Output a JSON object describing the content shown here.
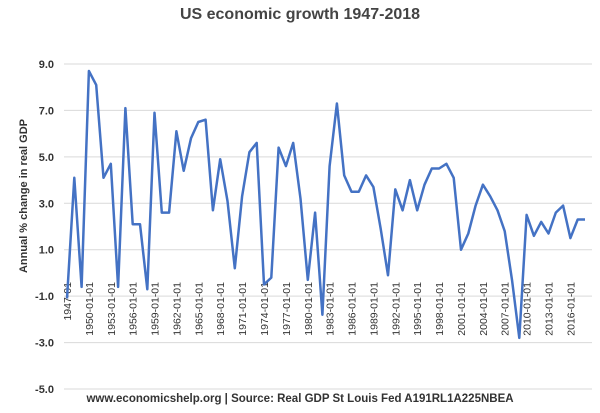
{
  "chart_data": {
    "type": "line",
    "title": "US economic growth 1947-2018",
    "ylabel": "Annual % change in real GDP",
    "xlabel": "",
    "source": "www.economicshelp.org | Source: Real GDP St Louis Fed A191RL1A225NBEA",
    "ylim": [
      -5,
      9
    ],
    "yticks": [
      "9.0",
      "7.0",
      "5.0",
      "3.0",
      "1.0",
      "-1.0",
      "-3.0",
      "-5.0"
    ],
    "xticks": [
      "1947-01",
      "1950-01-01",
      "1953-01-01",
      "1956-01-01",
      "1959-01-01",
      "1962-01-01",
      "1965-01-01",
      "1968-01-01",
      "1971-01-01",
      "1974-01-01",
      "1977-01-01",
      "1980-01-01",
      "1983-01-01",
      "1986-01-01",
      "1989-01-01",
      "1992-01-01",
      "1995-01-01",
      "1998-01-01",
      "2001-01-01",
      "2004-01-01",
      "2007-01-01",
      "2010-01-01",
      "2013-01-01",
      "2016-01-01"
    ],
    "line_color": "#4472C4",
    "grid": true,
    "x": [
      1947,
      1948,
      1949,
      1950,
      1951,
      1952,
      1953,
      1954,
      1955,
      1956,
      1957,
      1958,
      1959,
      1960,
      1961,
      1962,
      1963,
      1964,
      1965,
      1966,
      1967,
      1968,
      1969,
      1970,
      1971,
      1972,
      1973,
      1974,
      1975,
      1976,
      1977,
      1978,
      1979,
      1980,
      1981,
      1982,
      1983,
      1984,
      1985,
      1986,
      1987,
      1988,
      1989,
      1990,
      1991,
      1992,
      1993,
      1994,
      1995,
      1996,
      1997,
      1998,
      1999,
      2000,
      2001,
      2002,
      2003,
      2004,
      2005,
      2006,
      2007,
      2008,
      2009,
      2010,
      2011,
      2012,
      2013,
      2014,
      2015,
      2016,
      2017,
      2018
    ],
    "values": [
      -1.1,
      4.1,
      -0.6,
      8.7,
      8.1,
      4.1,
      4.7,
      -0.6,
      7.1,
      2.1,
      2.1,
      -0.7,
      6.9,
      2.6,
      2.6,
      6.1,
      4.4,
      5.8,
      6.5,
      6.6,
      2.7,
      4.9,
      3.1,
      0.2,
      3.3,
      5.2,
      5.6,
      -0.5,
      -0.2,
      5.4,
      4.6,
      5.6,
      3.2,
      -0.3,
      2.6,
      -1.8,
      4.6,
      7.3,
      4.2,
      3.5,
      3.5,
      4.2,
      3.7,
      1.9,
      -0.1,
      3.6,
      2.7,
      4.0,
      2.7,
      3.8,
      4.5,
      4.5,
      4.7,
      4.1,
      1.0,
      1.7,
      2.9,
      3.8,
      3.3,
      2.7,
      1.8,
      -0.3,
      -2.8,
      2.5,
      1.6,
      2.2,
      1.7,
      2.6,
      2.9,
      1.5,
      2.3,
      2.3
    ]
  }
}
